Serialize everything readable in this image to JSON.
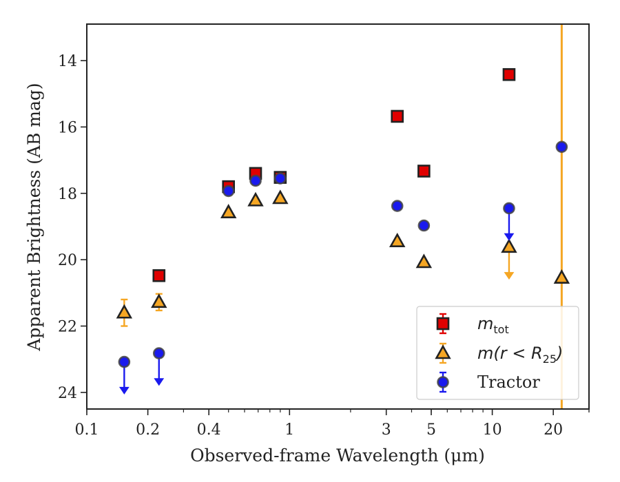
{
  "chart_data": {
    "type": "scatter",
    "xlabel": "Observed-frame Wavelength (μm)",
    "ylabel": "Apparent Brightness (AB mag)",
    "xscale": "log",
    "xlim": [
      0.1,
      30
    ],
    "ylim": [
      24.5,
      12.9
    ],
    "y_inverted": true,
    "xticks": [
      0.1,
      0.2,
      0.4,
      1,
      3,
      5,
      10,
      20
    ],
    "xtick_labels": [
      "0.1",
      "0.2",
      "0.4",
      "1",
      "3",
      "5",
      "10",
      "20"
    ],
    "yticks": [
      14,
      16,
      18,
      20,
      22,
      24
    ],
    "ytick_labels": [
      "14",
      "16",
      "18",
      "20",
      "22",
      "24"
    ],
    "grid": false,
    "legend_position": "bottom-right",
    "vertical_line": {
      "x": 22,
      "color": "#f5a623"
    },
    "series": [
      {
        "name": "m_tot",
        "marker": "square",
        "color": "#e00000",
        "points": [
          {
            "x": 0.227,
            "y": 20.48,
            "err": 0.08
          },
          {
            "x": 0.5,
            "y": 17.8,
            "err": 0.08
          },
          {
            "x": 0.68,
            "y": 17.4,
            "err": 0.08
          },
          {
            "x": 0.9,
            "y": 17.52,
            "err": 0.08
          },
          {
            "x": 3.4,
            "y": 15.68,
            "err": 0.05
          },
          {
            "x": 4.6,
            "y": 17.33,
            "err": 0.05
          },
          {
            "x": 12.1,
            "y": 14.42,
            "err": 0.05
          }
        ]
      },
      {
        "name": "m(r<R25)",
        "marker": "triangle",
        "color": "#f5a623",
        "points": [
          {
            "x": 0.153,
            "y": 21.6,
            "err": 0.4
          },
          {
            "x": 0.227,
            "y": 21.28,
            "err": 0.25
          },
          {
            "x": 0.5,
            "y": 18.58
          },
          {
            "x": 0.68,
            "y": 18.22
          },
          {
            "x": 0.9,
            "y": 18.15
          },
          {
            "x": 3.4,
            "y": 19.45
          },
          {
            "x": 4.6,
            "y": 20.08
          },
          {
            "x": 12.1,
            "y": 19.62,
            "upper_limit": true
          },
          {
            "x": 22,
            "y": 20.55
          }
        ]
      },
      {
        "name": "Tractor",
        "marker": "circle",
        "color": "#1a1aee",
        "points": [
          {
            "x": 0.153,
            "y": 23.08,
            "upper_limit": true
          },
          {
            "x": 0.227,
            "y": 22.82,
            "upper_limit": true
          },
          {
            "x": 0.5,
            "y": 17.93
          },
          {
            "x": 0.68,
            "y": 17.62
          },
          {
            "x": 0.9,
            "y": 17.55
          },
          {
            "x": 3.4,
            "y": 18.38
          },
          {
            "x": 4.6,
            "y": 18.97
          },
          {
            "x": 12.1,
            "y": 18.45,
            "upper_limit": true
          },
          {
            "x": 22,
            "y": 16.6
          }
        ]
      }
    ]
  }
}
